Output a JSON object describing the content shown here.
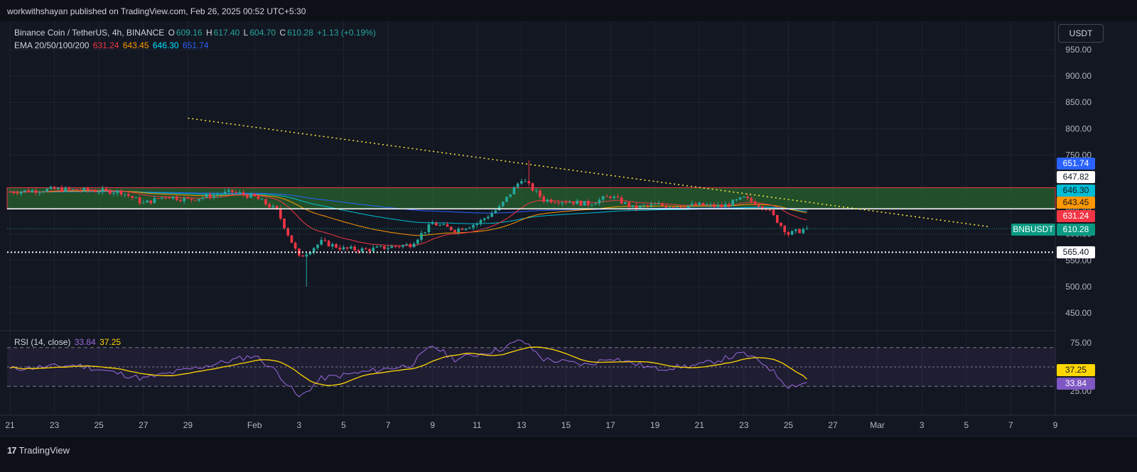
{
  "banner": {
    "text": "workwithshayan published on TradingView.com, Feb 26, 2025 00:52 UTC+5:30"
  },
  "footer": {
    "brand": "TradingView"
  },
  "legend": {
    "symbol": "Binance Coin / TetherUS, 4h, BINANCE",
    "open_label": "O",
    "open": "609.16",
    "high_label": "H",
    "high": "617.40",
    "low_label": "L",
    "low": "604.70",
    "close_label": "C",
    "close": "610.28",
    "change": "+1.13 (+0.19%)",
    "ema_label": "EMA 20/50/100/200",
    "ema20": "631.24",
    "ema50": "643.45",
    "ema100": "646.30",
    "ema200": "651.74",
    "rsi_label": "RSI (14, close)",
    "rsi": "33.84",
    "rsi_ma": "37.25"
  },
  "currency_button": "USDT",
  "colors": {
    "up": "#26a69a",
    "down": "#f23645",
    "ema20": "#f23645",
    "ema50": "#ff9800",
    "ema100": "#00bcd4",
    "ema200": "#2962ff",
    "rsi": "#9c6ade",
    "rsi_ma": "#ffd600",
    "zone": "#2e7d32",
    "trendline": "#ffeb3b"
  },
  "chart_data": [
    {
      "type": "candlestick",
      "title": "Binance Coin / TetherUS, 4h, BINANCE",
      "ylim": [
        420,
        980
      ],
      "y_ticks": [
        "950.00",
        "900.00",
        "850.00",
        "800.00",
        "750.00",
        "650.00",
        "600.00",
        "550.00",
        "500.00",
        "450.00"
      ],
      "x_ticks": [
        "21",
        "23",
        "25",
        "27",
        "29",
        "Feb",
        "3",
        "5",
        "7",
        "9",
        "11",
        "13",
        "15",
        "17",
        "19",
        "21",
        "23",
        "25",
        "27",
        "Mar",
        "3",
        "5",
        "7",
        "9"
      ],
      "x_domain_days": [
        "2025-01-21",
        "2025-03-09"
      ],
      "price_anchors": [
        {
          "date": "2025-01-21",
          "close": 680
        },
        {
          "date": "2025-01-23",
          "close": 685
        },
        {
          "date": "2025-01-25",
          "close": 682
        },
        {
          "date": "2025-01-26",
          "close": 680
        },
        {
          "date": "2025-01-27",
          "close": 658
        },
        {
          "date": "2025-01-28",
          "close": 672
        },
        {
          "date": "2025-01-29",
          "close": 665
        },
        {
          "date": "2025-01-31",
          "close": 680
        },
        {
          "date": "2025-02-01",
          "close": 670
        },
        {
          "date": "2025-02-02",
          "close": 645
        },
        {
          "date": "2025-02-03",
          "close": 555
        },
        {
          "date": "2025-02-04",
          "close": 585
        },
        {
          "date": "2025-02-05",
          "close": 572
        },
        {
          "date": "2025-02-06",
          "close": 570
        },
        {
          "date": "2025-02-07",
          "close": 575
        },
        {
          "date": "2025-02-08",
          "close": 580
        },
        {
          "date": "2025-02-09",
          "close": 620
        },
        {
          "date": "2025-02-10",
          "close": 608
        },
        {
          "date": "2025-02-11",
          "close": 620
        },
        {
          "date": "2025-02-12",
          "close": 650
        },
        {
          "date": "2025-02-13",
          "close": 705
        },
        {
          "date": "2025-02-14",
          "close": 665
        },
        {
          "date": "2025-02-15",
          "close": 662
        },
        {
          "date": "2025-02-16",
          "close": 657
        },
        {
          "date": "2025-02-17",
          "close": 672
        },
        {
          "date": "2025-02-18",
          "close": 650
        },
        {
          "date": "2025-02-19",
          "close": 655
        },
        {
          "date": "2025-02-20",
          "close": 653
        },
        {
          "date": "2025-02-21",
          "close": 655
        },
        {
          "date": "2025-02-22",
          "close": 652
        },
        {
          "date": "2025-02-23",
          "close": 668
        },
        {
          "date": "2025-02-24",
          "close": 650
        },
        {
          "date": "2025-02-25",
          "close": 600
        },
        {
          "date": "2025-02-25T20:00",
          "close": 610.28
        }
      ],
      "extremes": [
        {
          "label": "low",
          "date": "2025-02-03",
          "value": 500
        },
        {
          "label": "high",
          "date": "2025-02-13",
          "value": 740
        }
      ],
      "resistance_zone": [
        648,
        688
      ],
      "horizontal_levels": [
        {
          "value": 647.82,
          "label": "647.82",
          "style": "solid"
        },
        {
          "value": 565.4,
          "label": "565.40",
          "style": "dotted"
        }
      ],
      "trendline": {
        "from": {
          "date": "2025-01-29",
          "value": 820
        },
        "to": {
          "date": "2025-03-06",
          "value": 614
        }
      },
      "last_price": {
        "value": 610.28,
        "label": "610.28",
        "symbol": "BNBUSDT"
      },
      "ema_levels": [
        {
          "name": "EMA 20",
          "value": "631.24"
        },
        {
          "name": "EMA 50",
          "value": "643.45"
        },
        {
          "name": "EMA 100",
          "value": "646.30"
        },
        {
          "name": "EMA 200",
          "value": "651.74"
        }
      ]
    },
    {
      "type": "line",
      "title": "RSI (14, close)",
      "ylim": [
        0,
        100
      ],
      "y_ticks": [
        "75.00",
        "25.00"
      ],
      "bands": [
        30,
        50,
        70
      ],
      "rsi_anchors": [
        {
          "date": "2025-01-21",
          "value": 48
        },
        {
          "date": "2025-01-24",
          "value": 52
        },
        {
          "date": "2025-01-27",
          "value": 38
        },
        {
          "date": "2025-01-30",
          "value": 52
        },
        {
          "date": "2025-02-01",
          "value": 62
        },
        {
          "date": "2025-02-02",
          "value": 45
        },
        {
          "date": "2025-02-03",
          "value": 18
        },
        {
          "date": "2025-02-04",
          "value": 38
        },
        {
          "date": "2025-02-06",
          "value": 45
        },
        {
          "date": "2025-02-08",
          "value": 52
        },
        {
          "date": "2025-02-09",
          "value": 72
        },
        {
          "date": "2025-02-10",
          "value": 58
        },
        {
          "date": "2025-02-12",
          "value": 68
        },
        {
          "date": "2025-02-13",
          "value": 78
        },
        {
          "date": "2025-02-14",
          "value": 58
        },
        {
          "date": "2025-02-16",
          "value": 52
        },
        {
          "date": "2025-02-17",
          "value": 60
        },
        {
          "date": "2025-02-19",
          "value": 48
        },
        {
          "date": "2025-02-21",
          "value": 52
        },
        {
          "date": "2025-02-23",
          "value": 64
        },
        {
          "date": "2025-02-24",
          "value": 52
        },
        {
          "date": "2025-02-25",
          "value": 30
        },
        {
          "date": "2025-02-25T20:00",
          "value": 33.84
        }
      ],
      "ma_last": 37.25,
      "last_labels": [
        {
          "value": 37.25,
          "label": "37.25"
        },
        {
          "value": 33.84,
          "label": "33.84"
        }
      ]
    }
  ]
}
